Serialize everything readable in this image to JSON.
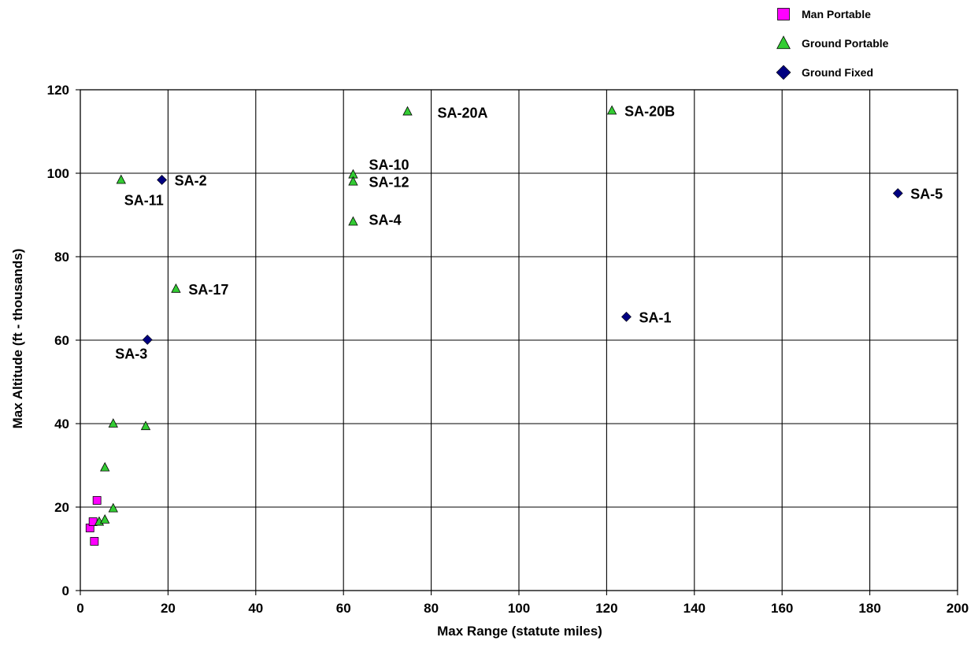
{
  "chart_data": {
    "type": "scatter",
    "xlabel": "Max Range (statute miles)",
    "ylabel": "Max Altitude (ft - thousands)",
    "xlim": [
      0,
      200
    ],
    "ylim": [
      0,
      120
    ],
    "x_ticks": [
      0,
      20,
      40,
      60,
      80,
      100,
      120,
      140,
      160,
      180,
      200
    ],
    "y_ticks": [
      0,
      20,
      40,
      60,
      80,
      100,
      120
    ],
    "grid": true,
    "legend_position": "top-right",
    "series": [
      {
        "name": "Man Portable",
        "marker": "square",
        "color": "#ff00ff",
        "points": [
          {
            "x": 2.2,
            "y": 15.0,
            "label": ""
          },
          {
            "x": 2.9,
            "y": 16.5,
            "label": ""
          },
          {
            "x": 3.2,
            "y": 11.8,
            "label": ""
          },
          {
            "x": 3.8,
            "y": 21.6,
            "label": ""
          }
        ]
      },
      {
        "name": "Ground Portable",
        "marker": "triangle",
        "color": "#33cc33",
        "points": [
          {
            "x": 9.3,
            "y": 98.4,
            "label": "SA-11",
            "label_pos": "below-left"
          },
          {
            "x": 21.8,
            "y": 72.3,
            "label": "SA-17",
            "label_pos": "right"
          },
          {
            "x": 62.2,
            "y": 99.7,
            "label": "SA-10",
            "label_pos": "above-right"
          },
          {
            "x": 62.2,
            "y": 98.0,
            "label": "SA-12",
            "label_pos": "right"
          },
          {
            "x": 62.2,
            "y": 88.4,
            "label": "SA-4",
            "label_pos": "right"
          },
          {
            "x": 74.6,
            "y": 114.8,
            "label": "SA-20A",
            "label_pos": "right"
          },
          {
            "x": 121.2,
            "y": 115.0,
            "label": "SA-20B",
            "label_pos": "right"
          },
          {
            "x": 7.5,
            "y": 40.0,
            "label": ""
          },
          {
            "x": 14.9,
            "y": 39.4,
            "label": ""
          },
          {
            "x": 5.6,
            "y": 29.5,
            "label": ""
          },
          {
            "x": 7.5,
            "y": 19.7,
            "label": ""
          },
          {
            "x": 4.3,
            "y": 16.5,
            "label": ""
          },
          {
            "x": 5.6,
            "y": 17.0,
            "label": ""
          }
        ]
      },
      {
        "name": "Ground Fixed",
        "marker": "diamond",
        "color": "#000080",
        "points": [
          {
            "x": 18.6,
            "y": 98.4,
            "label": "SA-2",
            "label_pos": "right"
          },
          {
            "x": 15.3,
            "y": 60.1,
            "label": "SA-3",
            "label_pos": "below-left"
          },
          {
            "x": 124.5,
            "y": 65.6,
            "label": "SA-1",
            "label_pos": "right"
          },
          {
            "x": 186.4,
            "y": 95.2,
            "label": "SA-5",
            "label_pos": "right"
          }
        ]
      }
    ]
  }
}
